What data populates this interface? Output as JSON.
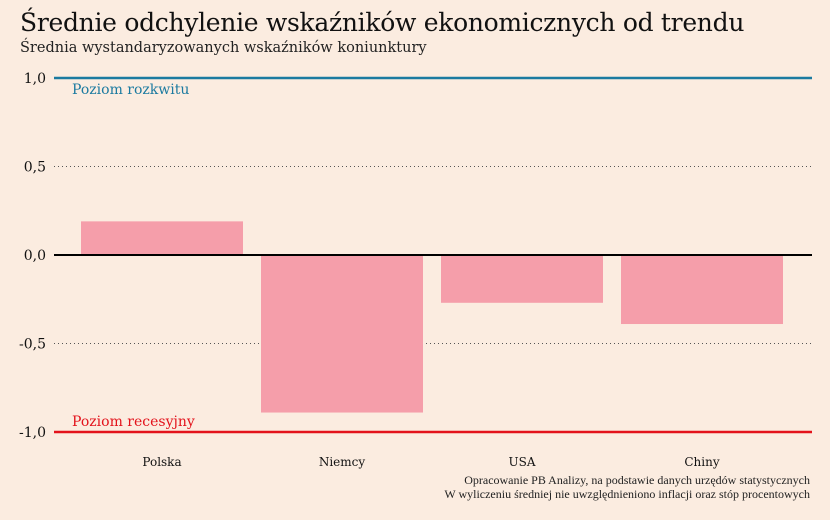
{
  "chart_data": {
    "type": "bar",
    "title": "Średnie odchylenie wskaźników ekonomicznych od trendu",
    "subtitle": "Średnia wystandaryzowanych wskaźników koniunktury",
    "categories": [
      "Polska",
      "Niemcy",
      "USA",
      "Chiny"
    ],
    "values": [
      0.19,
      -0.89,
      -0.27,
      -0.39
    ],
    "ylim": [
      -1.0,
      1.0
    ],
    "yticks": [
      1.0,
      0.5,
      0.0,
      -0.5,
      -1.0
    ],
    "ytick_labels": [
      "1,0",
      "0,5",
      "0,0",
      "-0,5",
      "-1,0"
    ],
    "bar_color": "#f59eaa",
    "grid": "dotted",
    "reference_lines": [
      {
        "value": 1.0,
        "label": "Poziom rozkwitu",
        "color": "#1b7aa0"
      },
      {
        "value": -1.0,
        "label": "Poziom recesyjny",
        "color": "#e3121b"
      }
    ],
    "source_lines": [
      "Opracowanie PB Analizy, na podstawie danych urzędów statystycznych",
      "W wyliczeniu średniej nie uwzględnieniono inflacji oraz stóp procentowych"
    ]
  }
}
